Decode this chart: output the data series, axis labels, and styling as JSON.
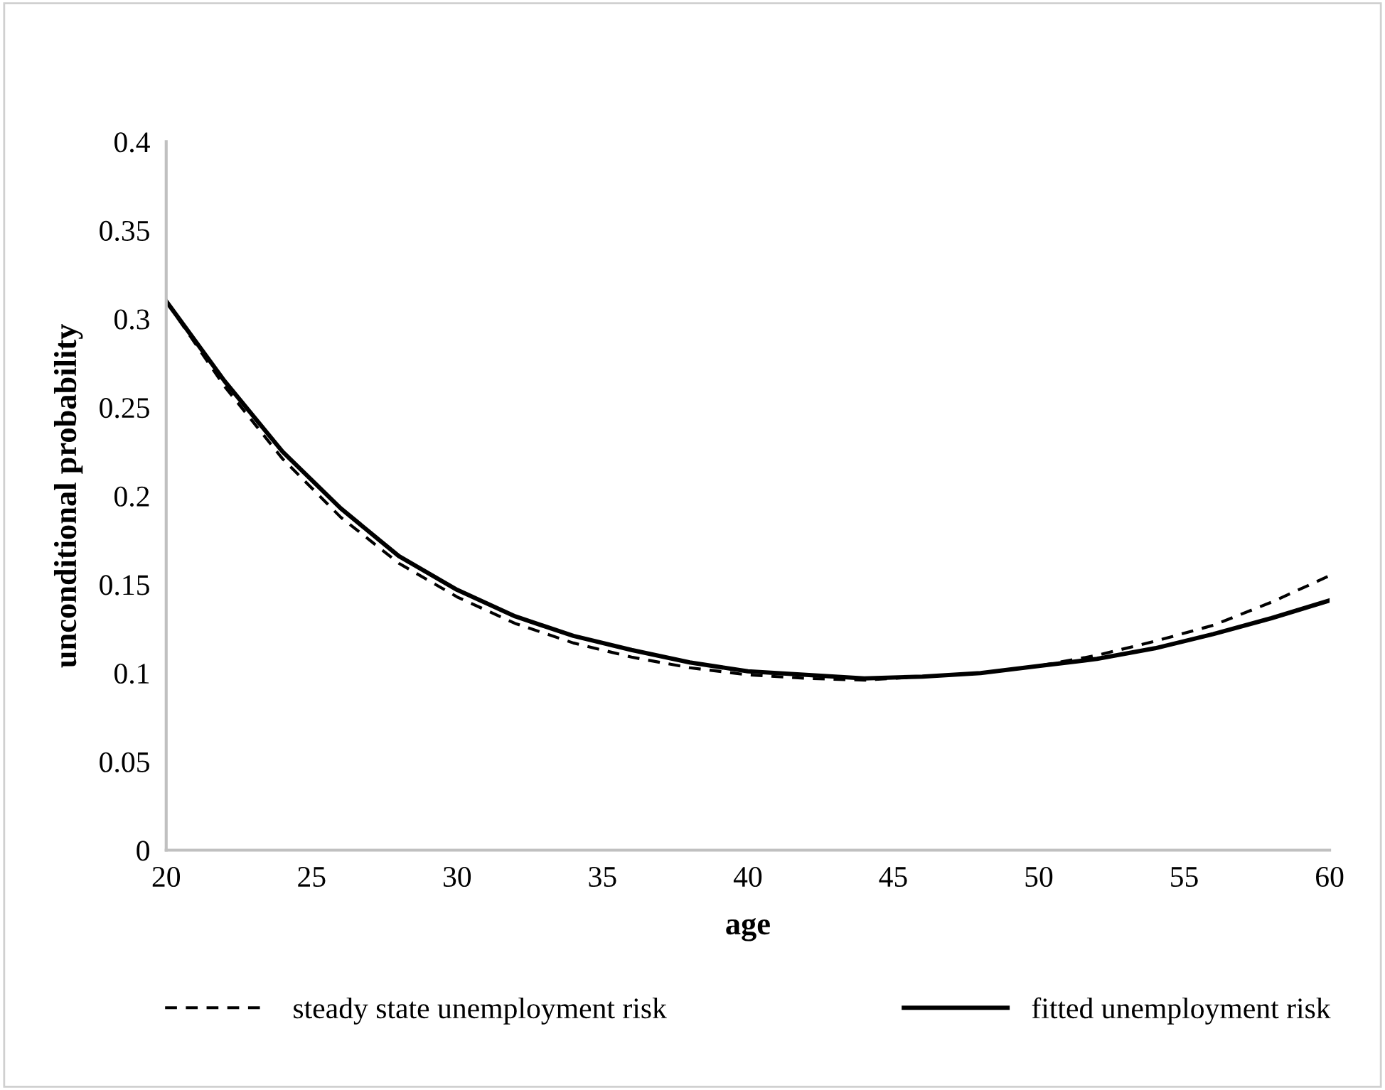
{
  "chart_data": {
    "type": "line",
    "xlabel": "age",
    "ylabel": "unconditional probability",
    "xlim": [
      20,
      60
    ],
    "ylim": [
      0,
      0.4
    ],
    "xticks": [
      20,
      25,
      30,
      35,
      40,
      45,
      50,
      55,
      60
    ],
    "yticks": [
      0,
      0.05,
      0.1,
      0.15,
      0.2,
      0.25,
      0.3,
      0.35,
      0.4
    ],
    "grid": false,
    "legend": "bottom",
    "marker": "none",
    "x": [
      20,
      22,
      24,
      26,
      28,
      30,
      32,
      34,
      36,
      38,
      40,
      42,
      44,
      46,
      48,
      50,
      52,
      54,
      56,
      58,
      60
    ],
    "series": [
      {
        "name": "steady state unemployment risk",
        "color": "#000000",
        "line_style": "dashed",
        "values": [
          0.31,
          0.262,
          0.221,
          0.188,
          0.162,
          0.143,
          0.128,
          0.117,
          0.109,
          0.103,
          0.099,
          0.097,
          0.096,
          0.098,
          0.1,
          0.104,
          0.11,
          0.118,
          0.127,
          0.14,
          0.155
        ]
      },
      {
        "name": "fitted unemployment risk",
        "color": "#000000",
        "line_style": "solid",
        "values": [
          0.31,
          0.265,
          0.225,
          0.193,
          0.166,
          0.147,
          0.132,
          0.121,
          0.113,
          0.106,
          0.101,
          0.099,
          0.097,
          0.098,
          0.1,
          0.104,
          0.108,
          0.114,
          0.122,
          0.131,
          0.141
        ]
      }
    ]
  }
}
